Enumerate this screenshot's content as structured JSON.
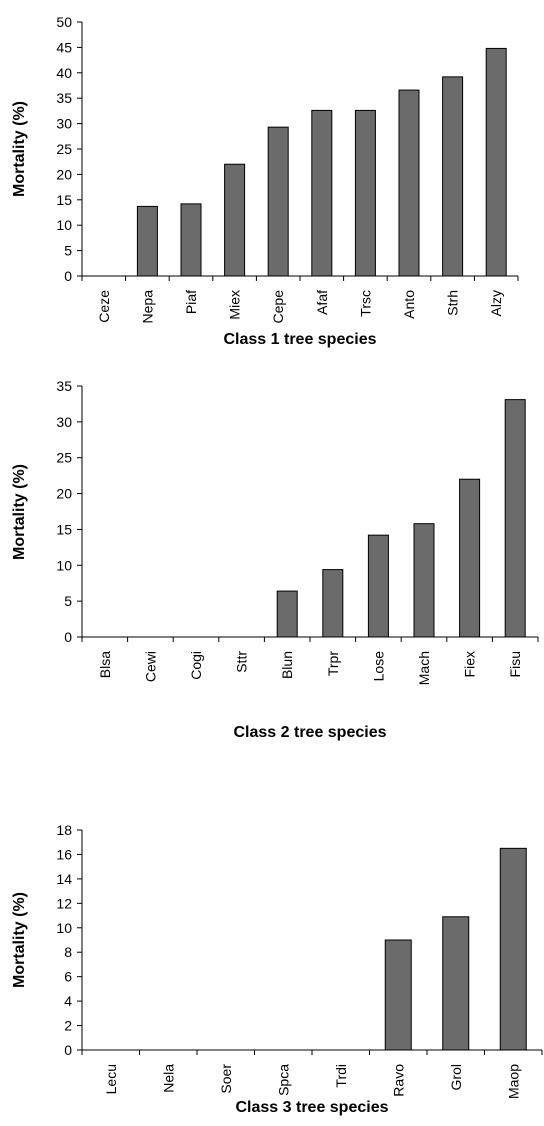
{
  "chart_data": [
    {
      "type": "bar",
      "categories": [
        "Ceze",
        "Nepa",
        "Piaf",
        "Miex",
        "Cepe",
        "Afaf",
        "Trsc",
        "Anto",
        "Strh",
        "Alzy"
      ],
      "values": [
        0,
        13.7,
        14.2,
        22,
        29.3,
        32.6,
        32.6,
        36.6,
        39.2,
        44.8
      ],
      "title": "",
      "xlabel": "Class 1 tree species",
      "ylabel": "Mortality (%)",
      "ylim": [
        0,
        50
      ],
      "yticks": [
        0,
        5,
        10,
        15,
        20,
        25,
        30,
        35,
        40,
        45,
        50
      ],
      "grid": false,
      "bar_color": "#6b6b6b"
    },
    {
      "type": "bar",
      "categories": [
        "Blsa",
        "Cewi",
        "Cogi",
        "Sttr",
        "Blun",
        "Trpr",
        "Lose",
        "Mach",
        "Fiex",
        "Fisu"
      ],
      "values": [
        0,
        0,
        0,
        0,
        6.4,
        9.4,
        14.2,
        15.8,
        22,
        33.1
      ],
      "title": "",
      "xlabel": "Class 2 tree species",
      "ylabel": "Mortality (%)",
      "ylim": [
        0,
        35
      ],
      "yticks": [
        0,
        5,
        10,
        15,
        20,
        25,
        30,
        35
      ],
      "grid": false,
      "bar_color": "#6b6b6b"
    },
    {
      "type": "bar",
      "categories": [
        "Lecu",
        "Nela",
        "Soer",
        "Spca",
        "Trdi",
        "Ravo",
        "Grol",
        "Maop"
      ],
      "values": [
        0,
        0,
        0,
        0,
        0,
        9,
        10.9,
        16.5
      ],
      "title": "",
      "xlabel": "Class 3 tree species",
      "ylabel": "Mortality (%)",
      "ylim": [
        0,
        18
      ],
      "yticks": [
        0,
        2,
        4,
        6,
        8,
        10,
        12,
        14,
        16,
        18
      ],
      "grid": false,
      "bar_color": "#6b6b6b"
    }
  ]
}
